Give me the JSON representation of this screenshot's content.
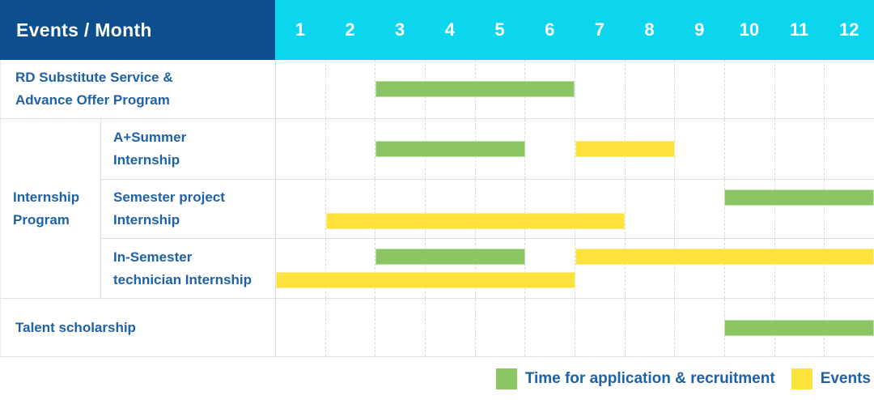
{
  "colors": {
    "navy": "#0D4E8C",
    "cyan": "#0CD6EE",
    "blue": "#1E61A6",
    "green": "#8CC664",
    "yellow": "#FDE23C",
    "grid": "#DEDEDE"
  },
  "header": {
    "title": "Events / Month",
    "months": [
      "1",
      "2",
      "3",
      "4",
      "5",
      "6",
      "7",
      "8",
      "9",
      "10",
      "11",
      "12"
    ]
  },
  "labels": {
    "rd1": "RD Substitute Service &",
    "rd2": "Advance Offer Program",
    "group1": "Internship",
    "group2": "Program",
    "ap1": "A+Summer",
    "ap2": "Internship",
    "sp1": "Semester project",
    "sp2": "Internship",
    "is1": "In-Semester",
    "is2": "technician Internship",
    "talent": "Talent scholarship"
  },
  "bars": {
    "rd": [
      [
        {
          "t": "g",
          "s": 3,
          "e": 6
        }
      ]
    ],
    "aplus": [
      [
        {
          "t": "g",
          "s": 3,
          "e": 5
        },
        {
          "t": "y",
          "s": 7,
          "e": 8
        }
      ]
    ],
    "semester": [
      [
        {
          "t": "g",
          "s": 10,
          "e": 12
        }
      ],
      [
        {
          "t": "y",
          "s": 2,
          "e": 7
        }
      ]
    ],
    "insem": [
      [
        {
          "t": "g",
          "s": 3,
          "e": 5
        },
        {
          "t": "y",
          "s": 7,
          "e": 12
        }
      ],
      [
        {
          "t": "y",
          "s": 1,
          "e": 6
        }
      ]
    ],
    "talent": [
      [
        {
          "t": "g",
          "s": 10,
          "e": 12
        }
      ]
    ]
  },
  "legend": {
    "application": "Time for application & recruitment",
    "events": "Events"
  },
  "chart_data": {
    "type": "bar",
    "subtype": "gantt-timeline",
    "title": "Events / Month",
    "x_axis": {
      "label": "Month",
      "ticks": [
        1,
        2,
        3,
        4,
        5,
        6,
        7,
        8,
        9,
        10,
        11,
        12
      ],
      "range": [
        1,
        12
      ]
    },
    "grid": true,
    "legend_position": "bottom-right",
    "series_legend": [
      "Time for application & recruitment",
      "Events"
    ],
    "rows": [
      {
        "group": null,
        "label": "RD Substitute Service & Advance Offer Program",
        "bars": [
          {
            "series": "Time for application & recruitment",
            "start_month": 3,
            "end_month": 6
          }
        ]
      },
      {
        "group": "Internship Program",
        "label": "A+Summer Internship",
        "bars": [
          {
            "series": "Time for application & recruitment",
            "start_month": 3,
            "end_month": 5
          },
          {
            "series": "Events",
            "start_month": 7,
            "end_month": 8
          }
        ]
      },
      {
        "group": "Internship Program",
        "label": "Semester project Internship",
        "bars": [
          {
            "series": "Time for application & recruitment",
            "start_month": 10,
            "end_month": 12
          },
          {
            "series": "Events",
            "start_month": 2,
            "end_month": 7
          }
        ]
      },
      {
        "group": "Internship Program",
        "label": "In-Semester technician Internship",
        "bars": [
          {
            "series": "Time for application & recruitment",
            "start_month": 3,
            "end_month": 5
          },
          {
            "series": "Events",
            "start_month": 7,
            "end_month": 12
          },
          {
            "series": "Events",
            "start_month": 1,
            "end_month": 6
          }
        ]
      },
      {
        "group": null,
        "label": "Talent scholarship",
        "bars": [
          {
            "series": "Time for application & recruitment",
            "start_month": 10,
            "end_month": 12
          }
        ]
      }
    ]
  }
}
